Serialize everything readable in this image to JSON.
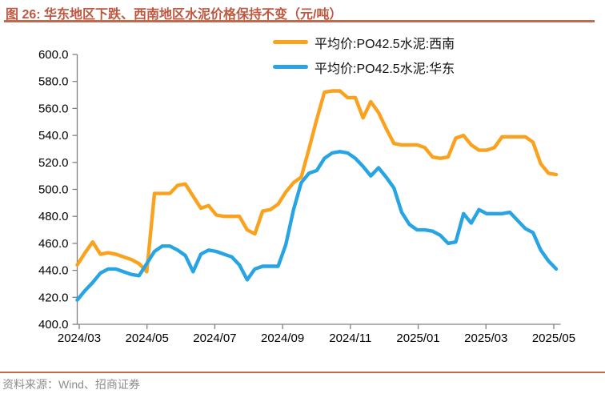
{
  "figure": {
    "title": "图 26: 华东地区下跌、西南地区水泥价格保持不变（元/吨）",
    "source": "资料来源：Wind、招商证券"
  },
  "colors": {
    "accent_rule": "#c4684c",
    "title_text": "#bf5740",
    "axis_line": "#808080",
    "tick_label": "#000000",
    "footer_text": "#8c8c8c"
  },
  "chart_data": {
    "type": "line",
    "title": "",
    "xlabel": "",
    "ylabel": "",
    "ylim": [
      400,
      600
    ],
    "y_tick_step": 20,
    "grid": false,
    "legend_position": "top-center",
    "x_unit": "weekly observations, 2024/02 - 2025/05",
    "x_tick_labels": [
      "2024/03",
      "2024/05",
      "2024/07",
      "2024/09",
      "2024/11",
      "2025/01",
      "2025/03",
      "2025/05"
    ],
    "y_tick_labels": [
      "600.0",
      "580.0",
      "560.0",
      "540.0",
      "520.0",
      "500.0",
      "480.0",
      "460.0",
      "440.0",
      "420.0",
      "400.0"
    ],
    "series": [
      {
        "name": "平均价:PO42.5水泥:西南",
        "key": "southwest",
        "color": "#faa21d",
        "values": [
          444,
          453,
          461,
          452,
          453,
          452,
          450,
          448,
          445,
          439,
          497,
          497,
          497,
          503,
          504,
          495,
          486,
          488,
          481,
          480,
          480,
          480,
          470,
          467,
          484,
          485,
          489,
          498,
          505,
          509,
          530,
          552,
          572,
          573,
          573,
          568,
          568,
          553,
          565,
          557,
          545,
          534,
          533,
          533,
          533,
          531,
          524,
          523,
          524,
          538,
          540,
          533,
          529,
          529,
          531,
          539,
          539,
          539,
          539,
          535,
          519,
          512,
          511
        ]
      },
      {
        "name": "平均价:PO42.5水泥:华东",
        "key": "east-china",
        "color": "#27a4e3",
        "values": [
          418,
          425,
          431,
          438,
          441,
          441,
          439,
          437,
          436,
          445,
          454,
          458,
          458,
          455,
          451,
          439,
          452,
          455,
          454,
          452,
          450,
          444,
          433,
          441,
          443,
          443,
          443,
          459,
          485,
          505,
          512,
          514,
          523,
          527,
          528,
          527,
          523,
          517,
          510,
          516,
          509,
          501,
          483,
          474,
          470,
          470,
          469,
          466,
          460,
          461,
          482,
          475,
          485,
          482,
          482,
          482,
          483,
          477,
          471,
          468,
          455,
          447,
          441
        ]
      }
    ]
  }
}
